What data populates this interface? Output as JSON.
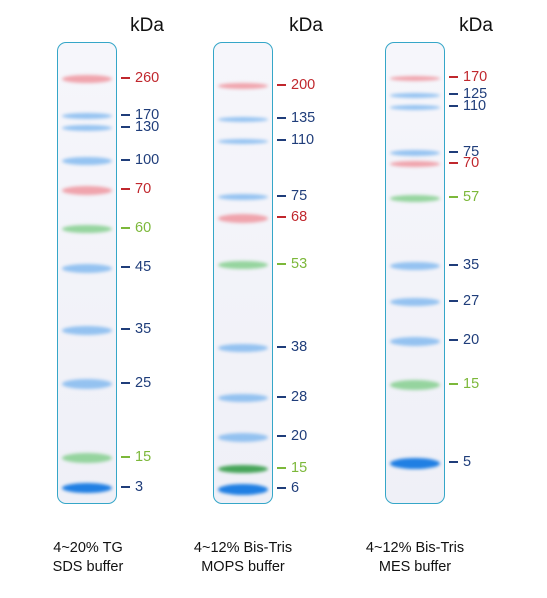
{
  "unit_label": "kDa",
  "colors": {
    "red": "#c0272d",
    "blue": "#1f3d7a",
    "green": "#7cb83a",
    "lane_border": "#35a6c8"
  },
  "gels": [
    {
      "caption_line1": "4~20% TG",
      "caption_line2": "SDS buffer",
      "markers": [
        {
          "label": "260",
          "color": "red"
        },
        {
          "label": "170",
          "color": "blue"
        },
        {
          "label": "130",
          "color": "blue"
        },
        {
          "label": "100",
          "color": "blue"
        },
        {
          "label": "70",
          "color": "red"
        },
        {
          "label": "60",
          "color": "green"
        },
        {
          "label": "45",
          "color": "blue"
        },
        {
          "label": "35",
          "color": "blue"
        },
        {
          "label": "25",
          "color": "blue"
        },
        {
          "label": "15",
          "color": "green"
        },
        {
          "label": "3",
          "color": "blue"
        }
      ]
    },
    {
      "caption_line1": "4~12% Bis-Tris",
      "caption_line2": "MOPS buffer",
      "markers": [
        {
          "label": "200",
          "color": "red"
        },
        {
          "label": "135",
          "color": "blue"
        },
        {
          "label": "110",
          "color": "blue"
        },
        {
          "label": "75",
          "color": "blue"
        },
        {
          "label": "68",
          "color": "red"
        },
        {
          "label": "53",
          "color": "green"
        },
        {
          "label": "38",
          "color": "blue"
        },
        {
          "label": "28",
          "color": "blue"
        },
        {
          "label": "20",
          "color": "blue"
        },
        {
          "label": "15",
          "color": "green"
        },
        {
          "label": "6",
          "color": "blue"
        }
      ]
    },
    {
      "caption_line1": "4~12% Bis-Tris",
      "caption_line2": "MES buffer",
      "markers": [
        {
          "label": "170",
          "color": "red"
        },
        {
          "label": "125",
          "color": "blue"
        },
        {
          "label": "110",
          "color": "blue"
        },
        {
          "label": "75",
          "color": "blue"
        },
        {
          "label": "70",
          "color": "red"
        },
        {
          "label": "57",
          "color": "green"
        },
        {
          "label": "35",
          "color": "blue"
        },
        {
          "label": "27",
          "color": "blue"
        },
        {
          "label": "20",
          "color": "blue"
        },
        {
          "label": "15",
          "color": "green"
        },
        {
          "label": "5",
          "color": "blue"
        }
      ]
    }
  ]
}
